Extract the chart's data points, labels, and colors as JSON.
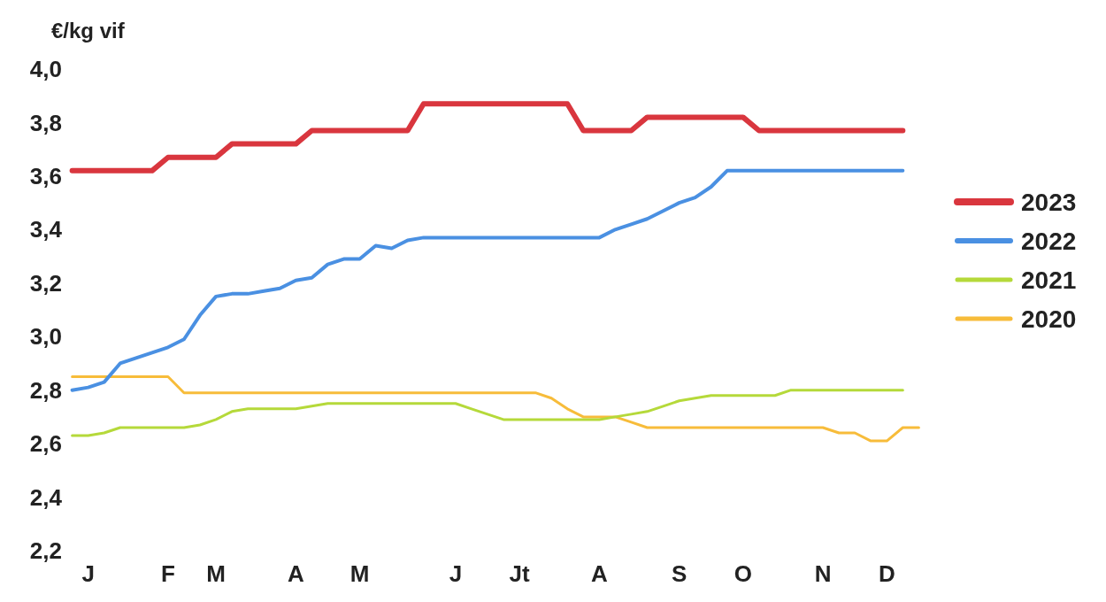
{
  "chart_data": {
    "type": "line",
    "ylabel": "€/kg vif",
    "categories": [
      null,
      "J",
      null,
      null,
      null,
      null,
      "F",
      null,
      null,
      "M",
      null,
      null,
      null,
      null,
      "A",
      null,
      null,
      null,
      "M",
      null,
      null,
      null,
      null,
      null,
      "J",
      null,
      null,
      null,
      "Jt",
      null,
      null,
      null,
      null,
      "A",
      null,
      null,
      null,
      null,
      "S",
      null,
      null,
      null,
      "O",
      null,
      null,
      null,
      null,
      "N",
      null,
      null,
      null,
      "D",
      null,
      null
    ],
    "ylim": [
      2.2,
      4.0
    ],
    "yticks": [
      {
        "value": 2.2,
        "label": "2,2"
      },
      {
        "value": 2.4,
        "label": "2,4"
      },
      {
        "value": 2.6,
        "label": "2,6"
      },
      {
        "value": 2.8,
        "label": "2,8"
      },
      {
        "value": 3.0,
        "label": "3,0"
      },
      {
        "value": 3.2,
        "label": "3,2"
      },
      {
        "value": 3.4,
        "label": "3,4"
      },
      {
        "value": 3.6,
        "label": "3,6"
      },
      {
        "value": 3.8,
        "label": "3,8"
      },
      {
        "value": 4.0,
        "label": "4,0"
      }
    ],
    "legend": "right",
    "line_style": "solid",
    "series": [
      {
        "name": "2023",
        "color": "#d9363e",
        "values": [
          3.62,
          3.62,
          3.62,
          3.62,
          3.62,
          3.62,
          3.67,
          3.67,
          3.67,
          3.67,
          3.72,
          3.72,
          3.72,
          3.72,
          3.72,
          3.77,
          3.77,
          3.77,
          3.77,
          3.77,
          3.77,
          3.77,
          3.87,
          3.87,
          3.87,
          3.87,
          3.87,
          3.87,
          3.87,
          3.87,
          3.87,
          3.87,
          3.77,
          3.77,
          3.77,
          3.77,
          3.82,
          3.82,
          3.82,
          3.82,
          3.82,
          3.82,
          3.82,
          3.77,
          3.77,
          3.77,
          3.77,
          3.77,
          3.77,
          3.77,
          3.77,
          3.77,
          3.77,
          null
        ]
      },
      {
        "name": "2022",
        "color": "#4a90e2",
        "values": [
          2.8,
          2.81,
          2.83,
          2.9,
          2.92,
          2.94,
          2.96,
          2.99,
          3.08,
          3.15,
          3.16,
          3.16,
          3.17,
          3.18,
          3.21,
          3.22,
          3.27,
          3.29,
          3.29,
          3.34,
          3.33,
          3.36,
          3.37,
          3.37,
          3.37,
          3.37,
          3.37,
          3.37,
          3.37,
          3.37,
          3.37,
          3.37,
          3.37,
          3.37,
          3.4,
          3.42,
          3.44,
          3.47,
          3.5,
          3.52,
          3.56,
          3.62,
          3.62,
          3.62,
          3.62,
          3.62,
          3.62,
          3.62,
          3.62,
          3.62,
          3.62,
          3.62,
          3.62,
          null
        ]
      },
      {
        "name": "2021",
        "color": "#b5d93a",
        "values": [
          2.63,
          2.63,
          2.64,
          2.66,
          2.66,
          2.66,
          2.66,
          2.66,
          2.67,
          2.69,
          2.72,
          2.73,
          2.73,
          2.73,
          2.73,
          2.74,
          2.75,
          2.75,
          2.75,
          2.75,
          2.75,
          2.75,
          2.75,
          2.75,
          2.75,
          2.73,
          2.71,
          2.69,
          2.69,
          2.69,
          2.69,
          2.69,
          2.69,
          2.69,
          2.7,
          2.71,
          2.72,
          2.74,
          2.76,
          2.77,
          2.78,
          2.78,
          2.78,
          2.78,
          2.78,
          2.8,
          2.8,
          2.8,
          2.8,
          2.8,
          2.8,
          2.8,
          2.8,
          null
        ]
      },
      {
        "name": "2020",
        "color": "#f7bc3a",
        "values": [
          2.85,
          2.85,
          2.85,
          2.85,
          2.85,
          2.85,
          2.85,
          2.79,
          2.79,
          2.79,
          2.79,
          2.79,
          2.79,
          2.79,
          2.79,
          2.79,
          2.79,
          2.79,
          2.79,
          2.79,
          2.79,
          2.79,
          2.79,
          2.79,
          2.79,
          2.79,
          2.79,
          2.79,
          2.79,
          2.79,
          2.77,
          2.73,
          2.7,
          2.7,
          2.7,
          2.68,
          2.66,
          2.66,
          2.66,
          2.66,
          2.66,
          2.66,
          2.66,
          2.66,
          2.66,
          2.66,
          2.66,
          2.66,
          2.64,
          2.64,
          2.61,
          2.61,
          2.66,
          2.66
        ]
      }
    ]
  }
}
